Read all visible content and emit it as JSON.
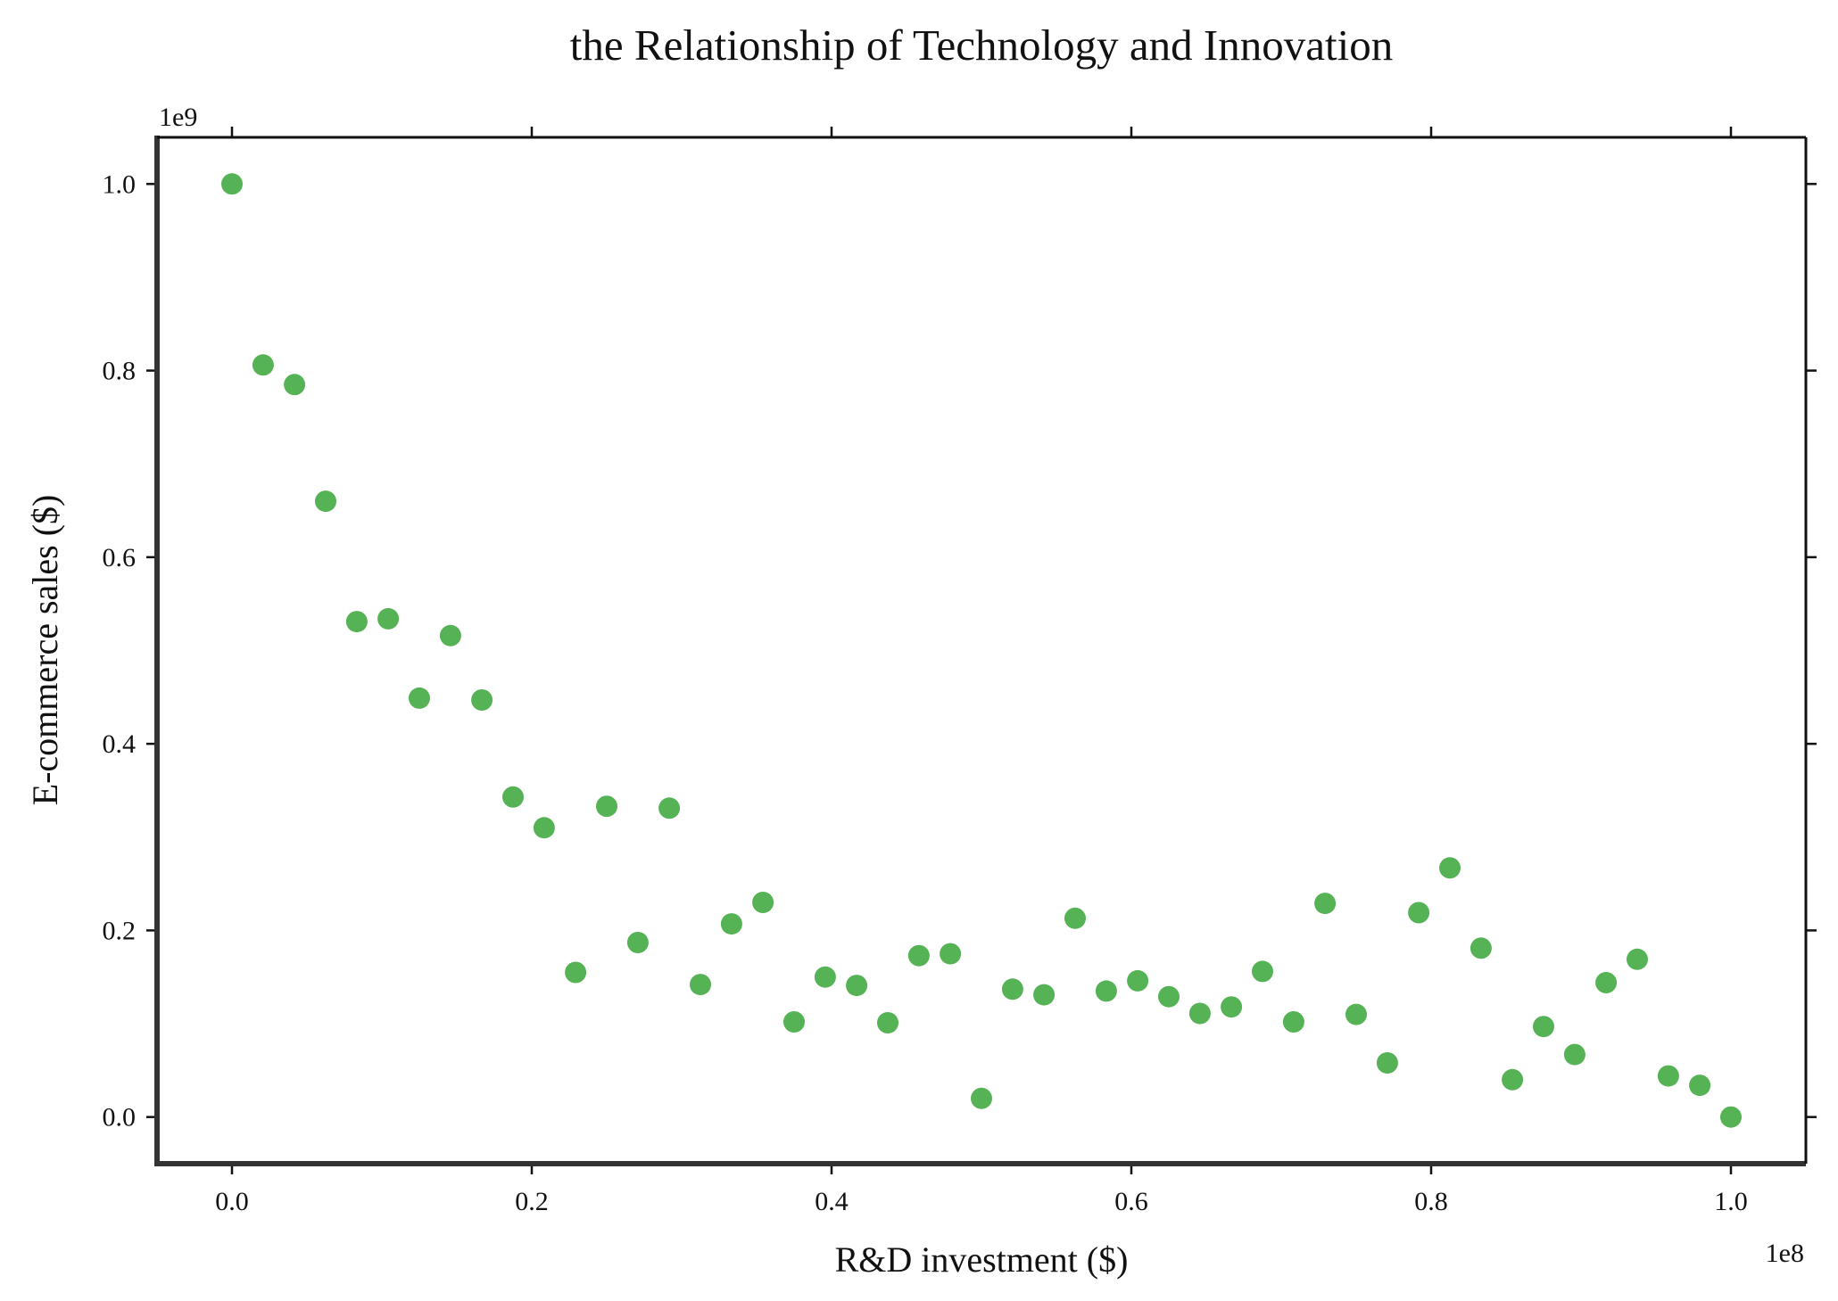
{
  "chart_data": {
    "type": "scatter",
    "title": "the Relationship of Technology and Innovation",
    "xlabel": "R&D investment ($)",
    "ylabel": "E-commerce sales ($)",
    "x_offset_text": "1e8",
    "y_offset_text": "1e9",
    "x_scale": 100000000,
    "y_scale": 1000000000,
    "xlim": [
      -0.05,
      1.05
    ],
    "ylim": [
      -0.05,
      1.05
    ],
    "x_ticks": [
      0.0,
      0.2,
      0.4,
      0.6,
      0.8,
      1.0
    ],
    "x_tick_labels": [
      "0.0",
      "0.2",
      "0.4",
      "0.6",
      "0.8",
      "1.0"
    ],
    "y_ticks": [
      0.0,
      0.2,
      0.4,
      0.6,
      0.8,
      1.0
    ],
    "y_tick_labels": [
      "0.0",
      "0.2",
      "0.4",
      "0.6",
      "0.8",
      "1.0"
    ],
    "grid": false,
    "color": "#55b255",
    "series": [
      {
        "name": "E-commerce sales",
        "x": [
          0.0,
          0.0208,
          0.0417,
          0.0625,
          0.0833,
          0.1042,
          0.125,
          0.1458,
          0.1667,
          0.1875,
          0.2083,
          0.2292,
          0.25,
          0.2708,
          0.2917,
          0.3125,
          0.3333,
          0.3542,
          0.375,
          0.3958,
          0.4167,
          0.4375,
          0.4583,
          0.4792,
          0.5,
          0.5208,
          0.5417,
          0.5625,
          0.5833,
          0.6042,
          0.625,
          0.6458,
          0.6667,
          0.6875,
          0.7083,
          0.7292,
          0.75,
          0.7708,
          0.7917,
          0.8125,
          0.8333,
          0.8542,
          0.875,
          0.8958,
          0.9167,
          0.9375,
          0.9583,
          0.9792,
          1.0
        ],
        "y": [
          1.0,
          0.806,
          0.785,
          0.66,
          0.531,
          0.534,
          0.449,
          0.516,
          0.447,
          0.343,
          0.31,
          0.155,
          0.333,
          0.187,
          0.331,
          0.142,
          0.207,
          0.23,
          0.102,
          0.15,
          0.141,
          0.101,
          0.173,
          0.175,
          0.02,
          0.137,
          0.131,
          0.213,
          0.135,
          0.146,
          0.129,
          0.111,
          0.118,
          0.156,
          0.102,
          0.229,
          0.11,
          0.058,
          0.219,
          0.267,
          0.181,
          0.04,
          0.097,
          0.067,
          0.144,
          0.169,
          0.044,
          0.034,
          0.0
        ]
      }
    ]
  }
}
